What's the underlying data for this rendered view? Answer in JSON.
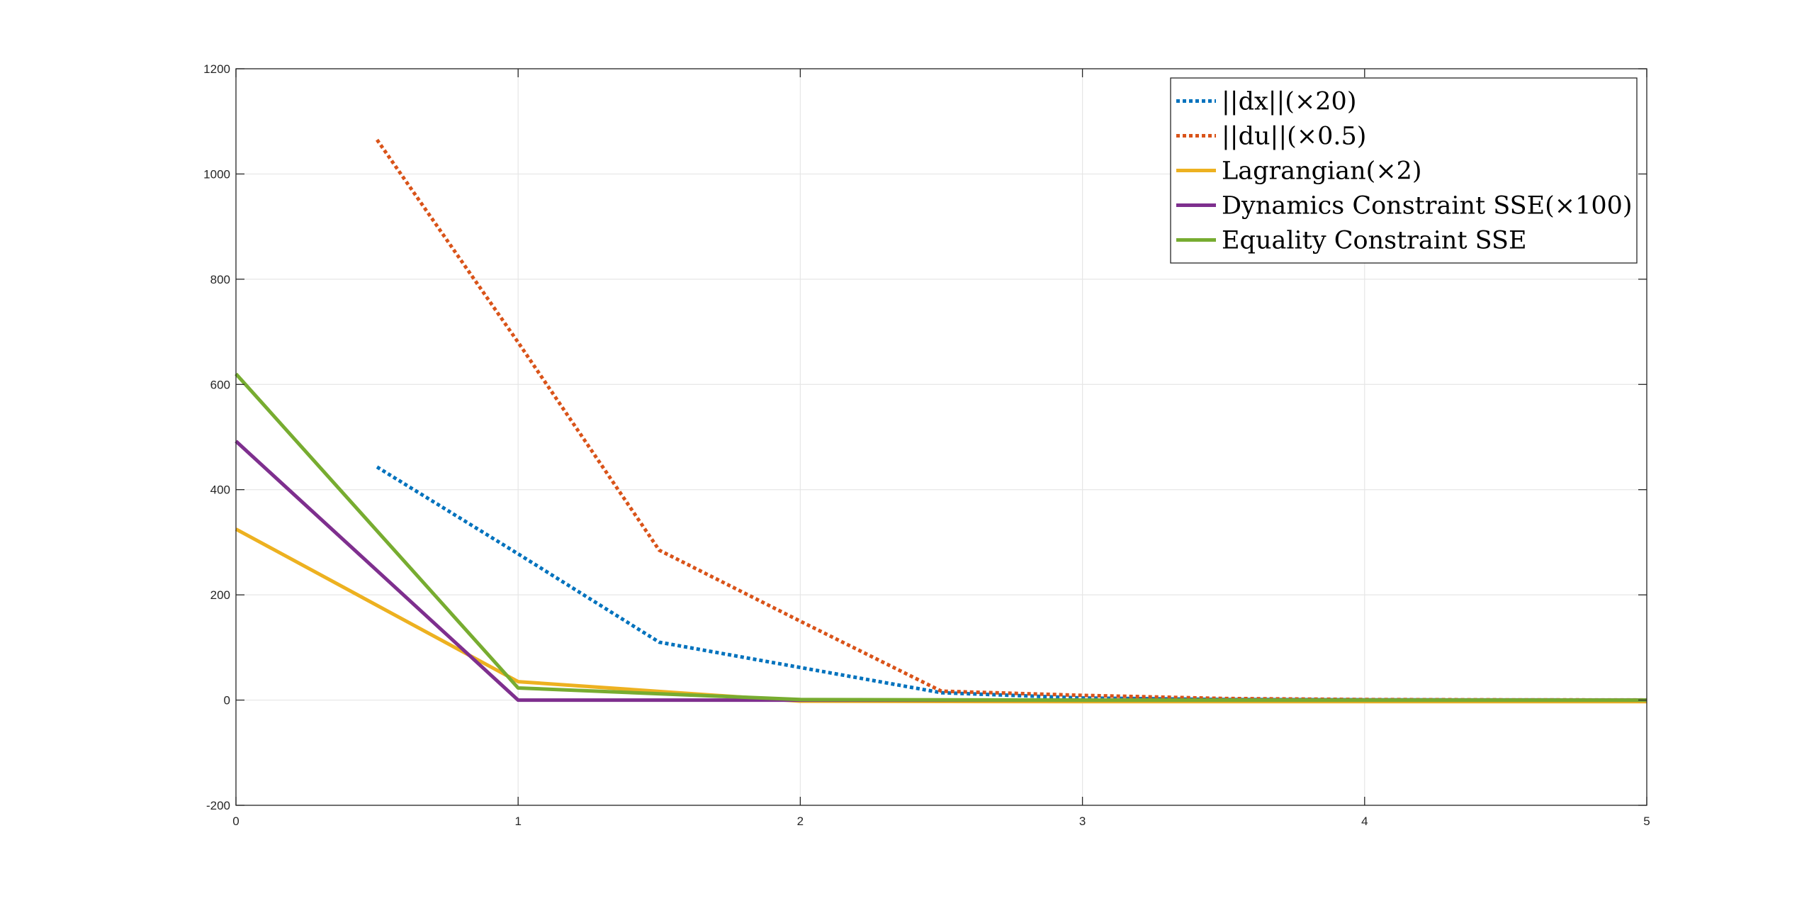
{
  "chart_data": {
    "type": "line",
    "xlim": [
      0,
      5
    ],
    "ylim": [
      -200,
      1200
    ],
    "xticks": [
      0,
      1,
      2,
      3,
      4,
      5
    ],
    "yticks": [
      -200,
      0,
      200,
      400,
      600,
      800,
      1000,
      1200
    ],
    "grid": true,
    "legend_position": "top-right",
    "series": [
      {
        "name": "||dx||(×20)",
        "color": "#0072BD",
        "style": "dotted",
        "x": [
          0.5,
          1,
          1.5,
          2,
          2.5,
          3,
          3.5,
          4,
          4.5,
          5
        ],
        "y": [
          443,
          278,
          110,
          62,
          14,
          4,
          1,
          0.5,
          0.2,
          0.1
        ]
      },
      {
        "name": "||du||(×0.5)",
        "color": "#D95319",
        "style": "dotted",
        "x": [
          0.5,
          1,
          1.5,
          2,
          2.5,
          3,
          3.5,
          4,
          4.5,
          5
        ],
        "y": [
          1065,
          680,
          285,
          150,
          17,
          9,
          3,
          1,
          0.5,
          0.2
        ]
      },
      {
        "name": "Lagrangian(×2)",
        "color": "#EDB120",
        "style": "solid",
        "x": [
          0,
          1,
          2,
          3,
          4,
          5
        ],
        "y": [
          325,
          35,
          -2,
          -3,
          -3,
          -3
        ]
      },
      {
        "name": "Dynamics Constraint SSE(×100)",
        "color": "#7E2F8E",
        "style": "solid",
        "x": [
          0,
          1,
          2,
          3,
          4,
          5
        ],
        "y": [
          492,
          0,
          0,
          0,
          0,
          0
        ]
      },
      {
        "name": "Equality Constraint SSE",
        "color": "#77AC30",
        "style": "solid",
        "x": [
          0,
          1,
          2,
          3,
          4,
          5
        ],
        "y": [
          620,
          23,
          1,
          0,
          0,
          0
        ]
      }
    ]
  }
}
